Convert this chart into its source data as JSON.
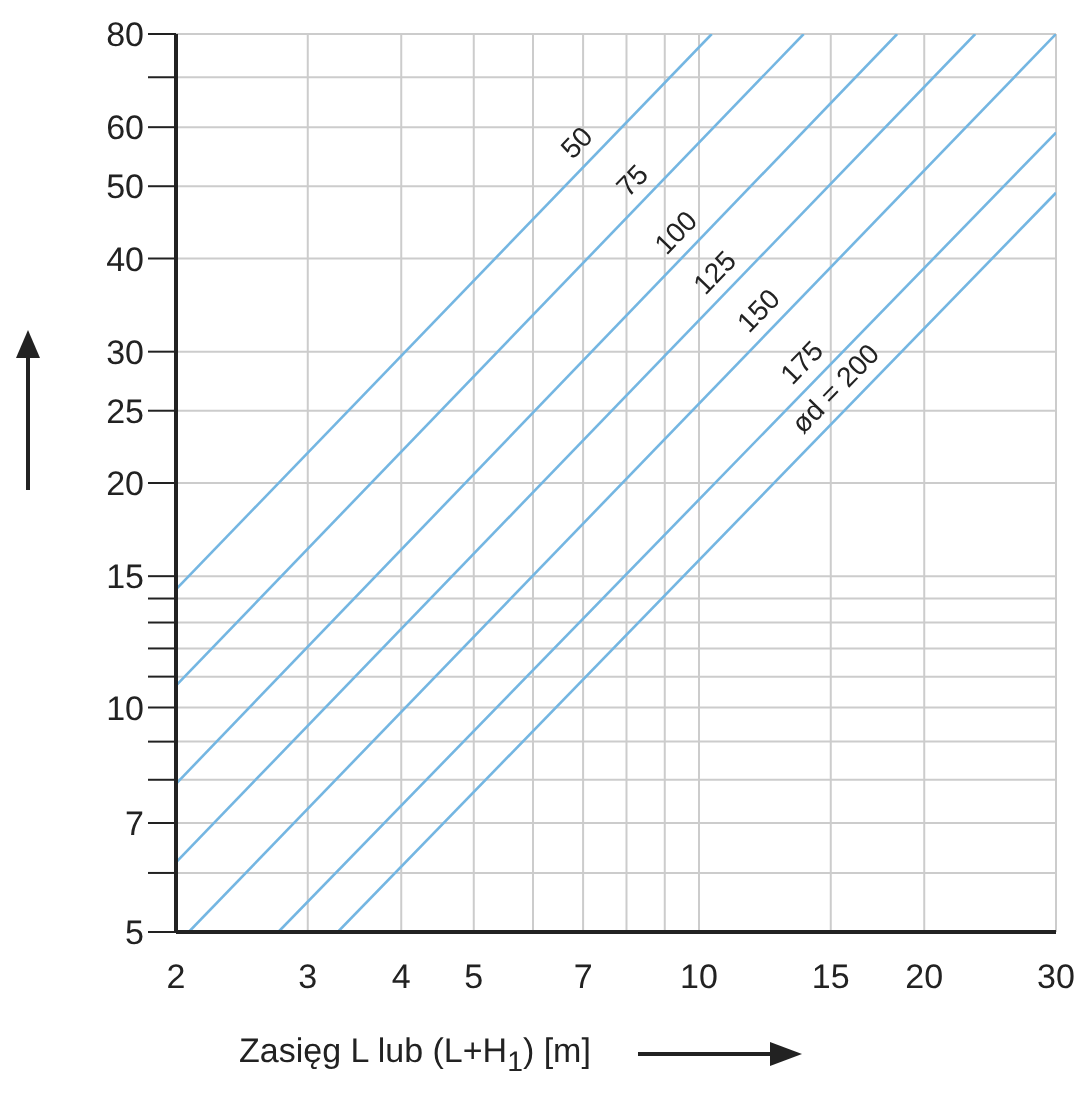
{
  "chart_data": {
    "type": "line",
    "xlabel": "Zasięg L lub (L+H$_{1}$) [m]",
    "log": "xy",
    "grid": true,
    "xlim": [
      2,
      30
    ],
    "ylim": [
      5,
      80
    ],
    "xticks": [
      2,
      3,
      4,
      5,
      {
        "value": 6,
        "label": null
      },
      7,
      {
        "value": 8,
        "label": null
      },
      {
        "value": 9,
        "label": null
      },
      10,
      15,
      20,
      30
    ],
    "yticks": [
      5,
      {
        "value": 6,
        "label": null
      },
      7,
      {
        "value": 8,
        "label": null
      },
      {
        "value": 9,
        "label": null
      },
      10,
      {
        "value": 11,
        "label": null
      },
      {
        "value": 12,
        "label": null
      },
      {
        "value": 13,
        "label": null
      },
      {
        "value": 14,
        "label": null
      },
      15,
      20,
      25,
      30,
      40,
      50,
      60,
      {
        "value": 70,
        "label": null
      },
      80
    ],
    "series": [
      {
        "name": "50",
        "color": "#74b6e2",
        "x": [
          2,
          10.4
        ],
        "values": [
          14.4,
          80
        ]
      },
      {
        "name": "75",
        "color": "#74b6e2",
        "x": [
          2,
          13.8
        ],
        "values": [
          10.7,
          80
        ]
      },
      {
        "name": "100",
        "color": "#74b6e2",
        "x": [
          2,
          18.4
        ],
        "values": [
          7.9,
          80
        ]
      },
      {
        "name": "125",
        "color": "#74b6e2",
        "x": [
          2,
          23.4
        ],
        "values": [
          6.2,
          80
        ]
      },
      {
        "name": "150",
        "color": "#74b6e2",
        "x": [
          2.08,
          30
        ],
        "values": [
          5,
          80
        ]
      },
      {
        "name": "175",
        "color": "#74b6e2",
        "x": [
          2.74,
          30
        ],
        "values": [
          5,
          59
        ]
      },
      {
        "name": "ød = 200",
        "color": "#74b6e2",
        "x": [
          3.29,
          30
        ],
        "values": [
          5,
          49
        ]
      }
    ]
  }
}
